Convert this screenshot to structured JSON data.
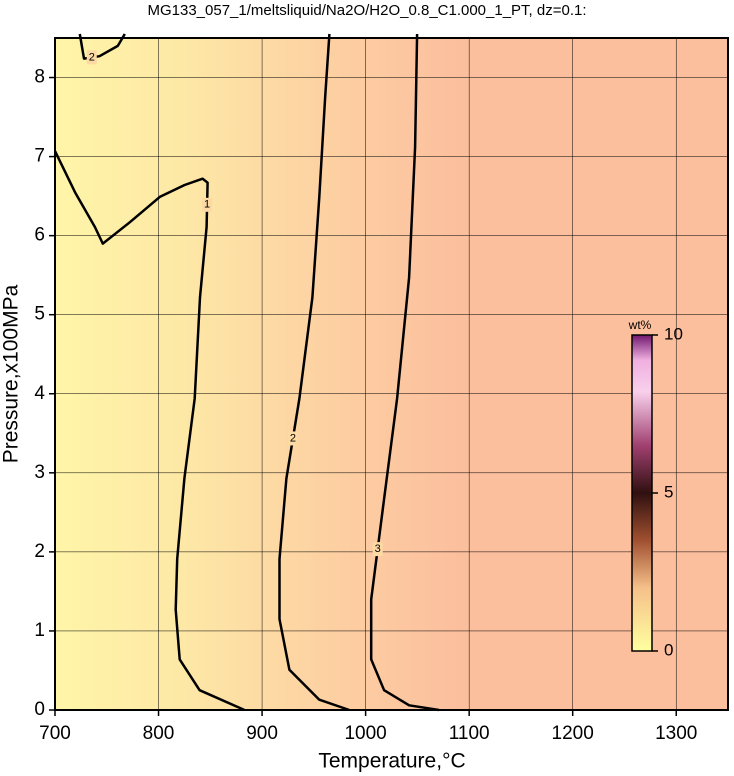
{
  "chart_data": {
    "type": "contour",
    "title": "MG133_057_1/meltsliquid/Na2O/H2O_0.8_C1.000_1_PT, dz=0.1:",
    "x_label": "Temperature,°C",
    "y_label": "Pressure,x100MPa",
    "xlim": [
      700,
      1350
    ],
    "ylim": [
      0,
      8.5
    ],
    "xticks": [
      700,
      800,
      900,
      1000,
      1100,
      1200,
      1300
    ],
    "yticks": [
      0,
      1,
      2,
      3,
      4,
      5,
      6,
      7,
      8
    ],
    "grid": true,
    "line_color": "#000000",
    "contours": [
      {
        "level": 1,
        "x": [
          700,
          719.3,
          738.5,
          746.2,
          772.3,
          801.2,
          825.2,
          842.6,
          847.4,
          846.4,
          840,
          834.9,
          825,
          818,
          816.6,
          820.4,
          839.7,
          883
        ],
        "y": [
          7.07,
          6.55,
          6.11,
          5.9,
          6.17,
          6.49,
          6.64,
          6.72,
          6.67,
          6.11,
          5.22,
          3.94,
          2.93,
          1.91,
          1.27,
          0.64,
          0.25,
          0
        ]
      },
      {
        "level": 2,
        "x": [
          724,
          728,
          743,
          760.7,
          767.4
        ],
        "y": [
          8.55,
          8.24,
          8.27,
          8.4,
          8.55
        ]
      },
      {
        "level": 2,
        "x": [
          965,
          961,
          955.3,
          948.6,
          936,
          923.5,
          916.8,
          916.8,
          926.4,
          955.3,
          984.2
        ],
        "y": [
          8.55,
          7.76,
          6.49,
          5.22,
          3.94,
          2.93,
          1.91,
          1.15,
          0.51,
          0.13,
          0
        ]
      },
      {
        "level": 3,
        "x": [
          1049.7,
          1047.8,
          1042,
          1030.4,
          1017.9,
          1005.4,
          1005.4,
          1017.9,
          1042,
          1070.9
        ],
        "y": [
          8.55,
          7.12,
          5.47,
          3.94,
          2.67,
          1.4,
          0.64,
          0.25,
          0.06,
          0
        ]
      }
    ],
    "colorbar": {
      "title": "wt%",
      "lim": [
        0,
        10
      ],
      "ticks": [
        0,
        5,
        10
      ]
    }
  }
}
